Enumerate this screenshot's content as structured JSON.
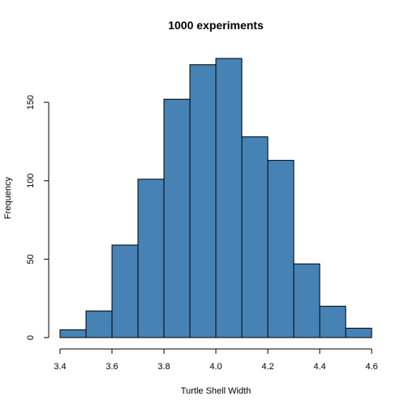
{
  "chart_data": {
    "type": "bar",
    "title": "1000 experiments",
    "xlabel": "Turtle Shell Width",
    "ylabel": "Frequency",
    "bin_edges": [
      3.4,
      3.5,
      3.6,
      3.7,
      3.8,
      3.9,
      4.0,
      4.1,
      4.2,
      4.3,
      4.4,
      4.5,
      4.6
    ],
    "values": [
      5,
      17,
      59,
      101,
      152,
      174,
      178,
      128,
      113,
      47,
      20,
      6
    ],
    "xlim": [
      3.4,
      4.6
    ],
    "ylim": [
      0,
      178
    ],
    "xticks": [
      3.4,
      3.6,
      3.8,
      4.0,
      4.2,
      4.4,
      4.6
    ],
    "xtick_labels": [
      "3.4",
      "3.6",
      "3.8",
      "4.0",
      "4.2",
      "4.4",
      "4.6"
    ],
    "yticks": [
      0,
      50,
      100,
      150
    ],
    "ytick_labels": [
      "0",
      "50",
      "100",
      "150"
    ],
    "bar_color": "#4682b4",
    "grid": false
  }
}
